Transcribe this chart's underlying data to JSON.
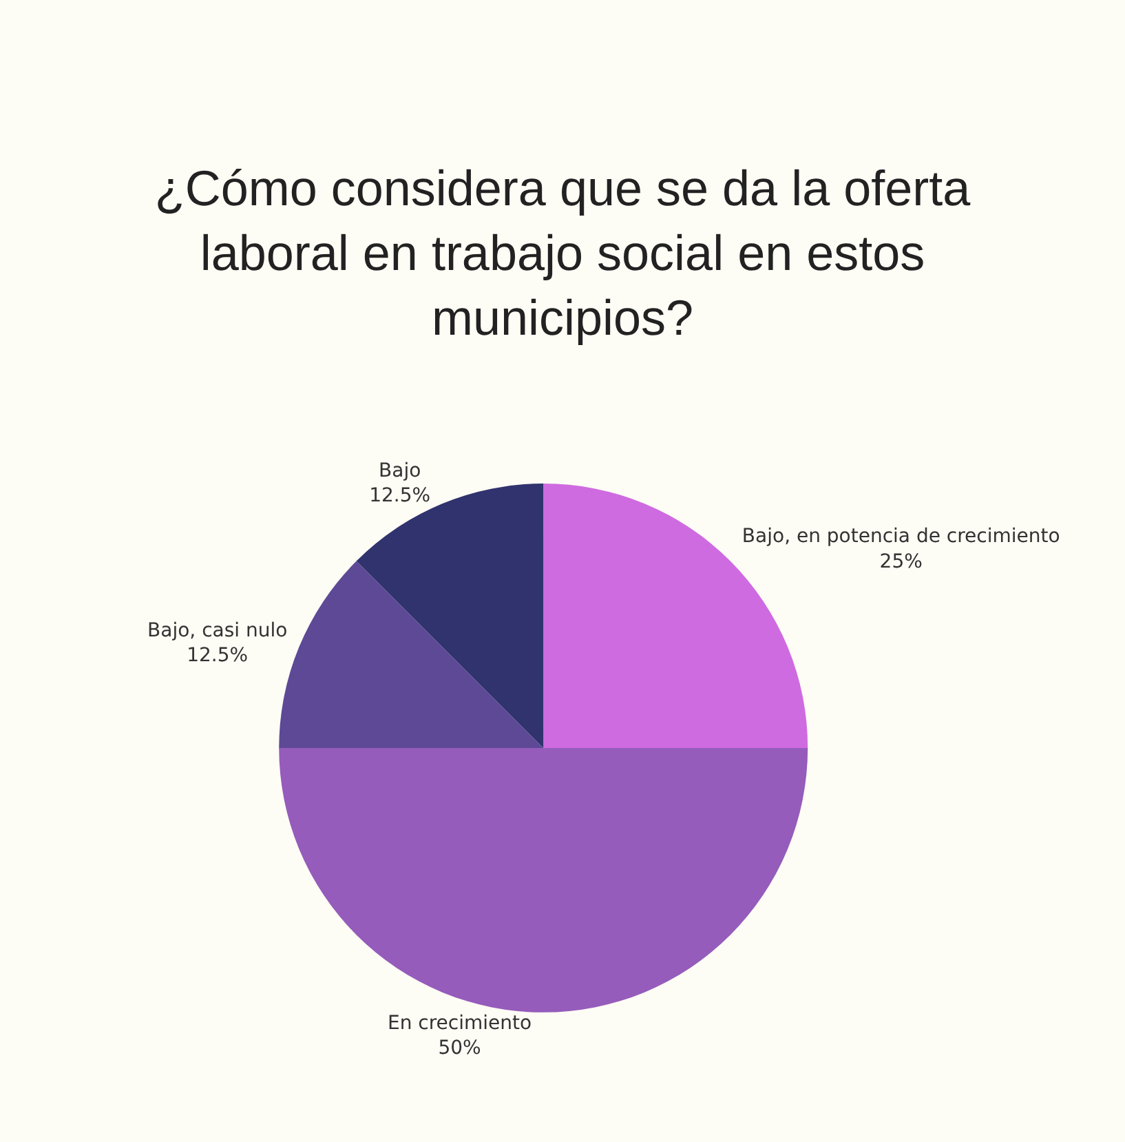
{
  "chart_data": {
    "type": "pie",
    "title": "¿Cómo considera que se da la oferta laboral en trabajo social en estos municipios?",
    "categories": [
      "Bajo, en potencia de crecimiento",
      "En crecimiento",
      "Bajo, casi nulo",
      "Bajo"
    ],
    "values": [
      25,
      50,
      12.5,
      12.5
    ],
    "value_labels": [
      "25%",
      "50%",
      "12.5%",
      "12.5%"
    ],
    "colors": [
      "#cf6be0",
      "#955cbb",
      "#5d4996",
      "#30336e"
    ]
  }
}
